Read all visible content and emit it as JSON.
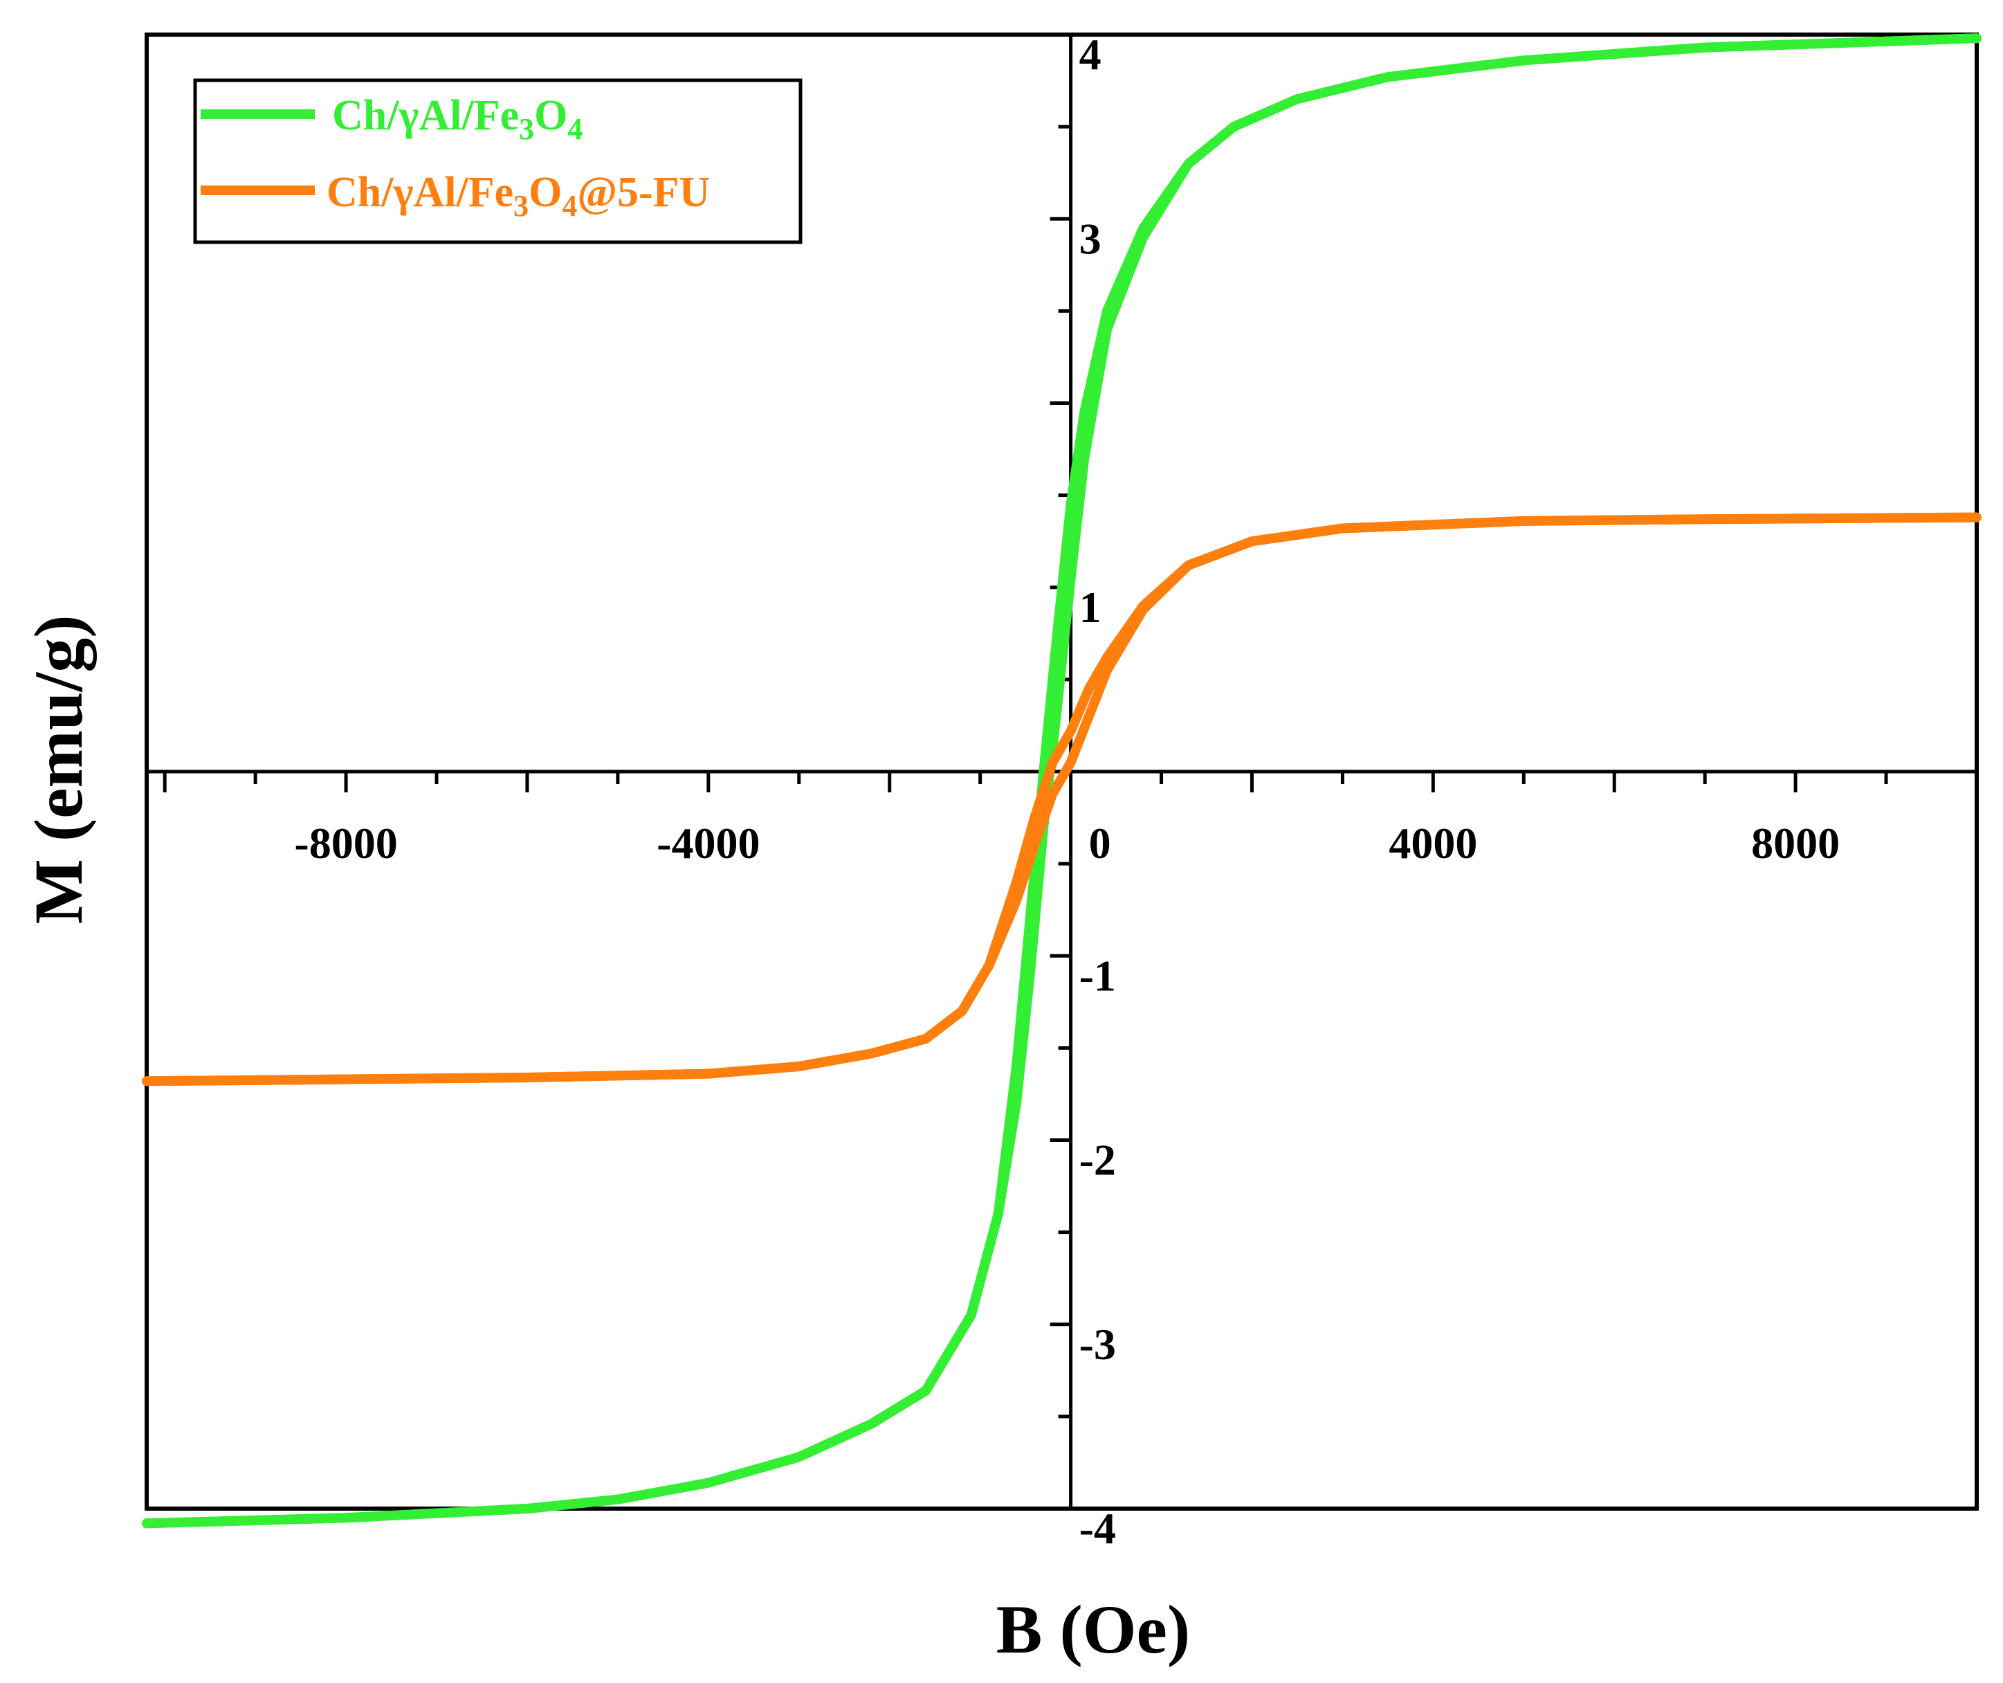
{
  "chart_data": {
    "type": "line",
    "title": "",
    "xlabel": "B (Oe)",
    "ylabel": "M (emu/g)",
    "xlim": [
      -10200,
      10000
    ],
    "ylim": [
      -4,
      4
    ],
    "x_ticks": [
      -8000,
      -4000,
      0,
      4000,
      8000
    ],
    "x_tick_labels": [
      "-8000",
      "-4000",
      "0",
      "4000",
      "8000"
    ],
    "y_ticks": [
      -4,
      -3,
      -2,
      -1,
      1,
      3,
      4
    ],
    "y_tick_labels": [
      "-4",
      "-3",
      "-2",
      "-1",
      "1",
      "3",
      "4"
    ],
    "legend_position": "top-left",
    "series": [
      {
        "name": "Ch/γAl/Fe3O4",
        "legend_main": "Ch/γAl/Fe",
        "legend_sub1": "3",
        "legend_mid": "O",
        "legend_sub2": "4",
        "legend_tail": "",
        "color": "#33ee33",
        "branches": [
          {
            "x": [
              -10200,
              -8000,
              -6000,
              -5000,
              -4000,
              -3000,
              -2200,
              -1600,
              -1100,
              -800,
              -600,
              -450,
              -300,
              -150,
              0,
              150,
              400,
              800,
              1300,
              1800,
              2500,
              3500,
              5000,
              7000,
              10000
            ],
            "y": [
              -4.08,
              -4.05,
              -4.0,
              -3.95,
              -3.86,
              -3.72,
              -3.54,
              -3.36,
              -2.95,
              -2.4,
              -1.6,
              -0.8,
              0.0,
              0.75,
              1.45,
              1.95,
              2.5,
              2.95,
              3.3,
              3.5,
              3.65,
              3.77,
              3.86,
              3.93,
              3.98
            ]
          },
          {
            "x": [
              -10200,
              -8000,
              -6000,
              -5000,
              -4000,
              -3000,
              -2200,
              -1600,
              -1100,
              -800,
              -600,
              -450,
              -300,
              -150,
              0,
              150,
              400,
              800,
              1300,
              1800,
              2500,
              3500,
              5000,
              7000,
              10000
            ],
            "y": [
              -4.08,
              -4.05,
              -4.0,
              -3.95,
              -3.86,
              -3.72,
              -3.54,
              -3.36,
              -2.95,
              -2.4,
              -1.8,
              -1.1,
              -0.3,
              0.35,
              1.05,
              1.7,
              2.4,
              2.9,
              3.3,
              3.5,
              3.65,
              3.77,
              3.86,
              3.93,
              3.98
            ]
          }
        ]
      },
      {
        "name": "Ch/γAl/Fe3O4@5-FU",
        "legend_main": "Ch/γAl/Fe",
        "legend_sub1": "3",
        "legend_mid": "O",
        "legend_sub2": "4",
        "legend_tail": "@5-FU",
        "color": "#ff7f0e",
        "branches": [
          {
            "x": [
              -10200,
              -8000,
              -6000,
              -4000,
              -3000,
              -2200,
              -1600,
              -1200,
              -900,
              -600,
              -400,
              -200,
              0,
              200,
              400,
              800,
              1300,
              2000,
              3000,
              5000,
              7000,
              10000
            ],
            "y": [
              -1.68,
              -1.67,
              -1.66,
              -1.64,
              -1.6,
              -1.53,
              -1.45,
              -1.3,
              -1.05,
              -0.6,
              -0.25,
              0.05,
              0.22,
              0.45,
              0.62,
              0.9,
              1.12,
              1.25,
              1.32,
              1.36,
              1.37,
              1.38
            ]
          },
          {
            "x": [
              -10200,
              -8000,
              -6000,
              -4000,
              -3000,
              -2200,
              -1600,
              -1200,
              -900,
              -600,
              -400,
              -200,
              0,
              200,
              400,
              800,
              1300,
              2000,
              3000,
              5000,
              7000,
              10000
            ],
            "y": [
              -1.68,
              -1.67,
              -1.66,
              -1.64,
              -1.6,
              -1.53,
              -1.45,
              -1.3,
              -1.05,
              -0.7,
              -0.4,
              -0.12,
              0.05,
              0.3,
              0.55,
              0.88,
              1.12,
              1.25,
              1.32,
              1.36,
              1.37,
              1.38
            ]
          }
        ]
      }
    ]
  }
}
